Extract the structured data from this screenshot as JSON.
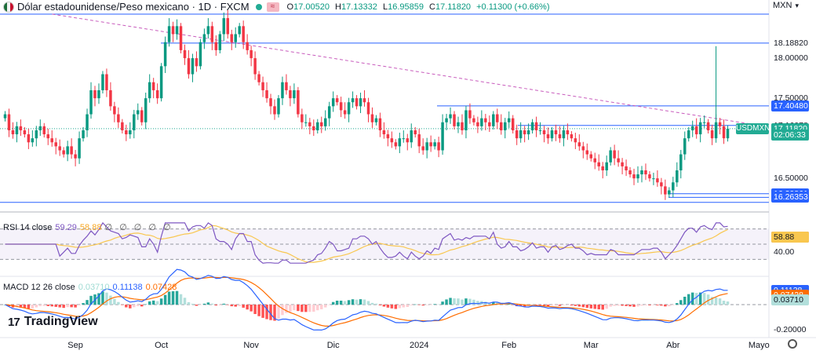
{
  "header": {
    "title": "Dólar estadounidense/Peso mexicano · 1D · FXCM",
    "badge": "≈",
    "ohlc": {
      "o_key": "O",
      "o": "17.00520",
      "h_key": "H",
      "h": "17.13332",
      "l_key": "L",
      "l": "16.95859",
      "c_key": "C",
      "c": "17.11820",
      "change": "+0.11300 (+0.66%)"
    },
    "currency": "MXN"
  },
  "logo_text": "TradingView",
  "price_axis": {
    "labels": [
      {
        "text": "18.18820",
        "y": 18.1882,
        "style": "plain"
      },
      {
        "text": "18.00000",
        "y": 18.0,
        "style": "plain"
      },
      {
        "text": "17.50000",
        "y": 17.5,
        "style": "plain"
      },
      {
        "text": "17.40480",
        "y": 17.4048,
        "style": "blue"
      },
      {
        "text": "17.16078",
        "y": 17.16078,
        "style": "plain"
      },
      {
        "text": "17.11820",
        "y": 17.1182,
        "style": "green"
      },
      {
        "text": "02:06:33",
        "y": 17.04,
        "style": "green"
      },
      {
        "text": "16.50000",
        "y": 16.5,
        "style": "plain"
      },
      {
        "text": "16.30861",
        "y": 16.30861,
        "style": "blue"
      },
      {
        "text": "16.26353",
        "y": 16.26353,
        "style": "blue"
      }
    ],
    "symbol_tag": "USDMXN"
  },
  "rsi": {
    "label": "RSI 14 close",
    "value": "59.29",
    "ma_value": "58.88",
    "icons": "∅ ∅ ∅ ∅ ∅",
    "axis_labels": [
      {
        "text": "59.29",
        "y": 59.29,
        "style": "purple"
      },
      {
        "text": "58.88",
        "y": 58.88,
        "style": "yellow"
      },
      {
        "text": "40.00",
        "y": 40,
        "style": "plain"
      }
    ]
  },
  "macd": {
    "label": "MACD 12 26 close",
    "hist_value": "0.03710",
    "macd_value": "0.11138",
    "signal_value": "0.07428",
    "axis_labels": [
      {
        "text": "0.11138",
        "y": 0.11138,
        "style": "blue"
      },
      {
        "text": "0.07428",
        "y": 0.07428,
        "style": "orange"
      },
      {
        "text": "0.03710",
        "y": 0.0371,
        "style": "teal"
      },
      {
        "text": "-0.20000",
        "y": -0.2,
        "style": "plain"
      }
    ]
  },
  "time_axis": [
    {
      "label": "Sep",
      "index": 18
    },
    {
      "label": "Oct",
      "index": 40
    },
    {
      "label": "Nov",
      "index": 63
    },
    {
      "label": "Dic",
      "index": 84
    },
    {
      "label": "2024",
      "index": 106
    },
    {
      "label": "Feb",
      "index": 129
    },
    {
      "label": "Mar",
      "index": 150
    },
    {
      "label": "Abr",
      "index": 171
    },
    {
      "label": "Mayo",
      "index": 193
    }
  ],
  "chart_data": {
    "type": "candlestick",
    "symbol": "USDMXN",
    "price_range": [
      16.1,
      18.55
    ],
    "horizontal_levels": [
      18.55,
      18.1882,
      17.4048,
      17.16078,
      16.30861,
      16.26353,
      16.2
    ],
    "trendline": {
      "from_index": 0,
      "from_price": 18.55,
      "to_index": 192,
      "to_price": 17.17
    },
    "closes": [
      17.3,
      17.1,
      17.05,
      17.15,
      17.1,
      17.05,
      16.95,
      17.0,
      17.1,
      17.15,
      17.05,
      17.0,
      16.95,
      16.9,
      16.85,
      16.8,
      16.9,
      16.8,
      16.75,
      17.0,
      17.1,
      17.3,
      17.6,
      17.5,
      17.6,
      17.8,
      17.6,
      17.4,
      17.3,
      17.2,
      17.1,
      17.05,
      17.1,
      17.3,
      17.35,
      17.2,
      17.5,
      17.7,
      17.6,
      17.5,
      17.9,
      18.2,
      18.4,
      18.3,
      18.4,
      18.1,
      18.0,
      17.8,
      18.0,
      17.9,
      18.2,
      18.3,
      18.4,
      18.2,
      18.1,
      18.3,
      18.5,
      18.3,
      18.2,
      18.3,
      18.4,
      18.2,
      18.1,
      18.0,
      17.8,
      17.7,
      17.6,
      17.5,
      17.4,
      17.3,
      17.5,
      17.7,
      17.6,
      17.5,
      17.6,
      17.3,
      17.2,
      17.2,
      17.15,
      17.1,
      17.2,
      17.15,
      17.25,
      17.4,
      17.5,
      17.45,
      17.35,
      17.3,
      17.45,
      17.5,
      17.4,
      17.5,
      17.45,
      17.3,
      17.2,
      17.25,
      17.1,
      17.05,
      17.0,
      16.95,
      16.9,
      17.0,
      17.0,
      16.95,
      17.1,
      17.05,
      16.9,
      16.85,
      16.95,
      16.9,
      16.95,
      16.85,
      17.2,
      17.25,
      17.3,
      17.15,
      17.2,
      17.1,
      17.35,
      17.25,
      17.2,
      17.15,
      17.25,
      17.2,
      17.15,
      17.3,
      17.2,
      17.1,
      17.2,
      17.25,
      17.1,
      17.0,
      17.1,
      17.05,
      17.1,
      17.2,
      17.1,
      17.1,
      17.05,
      17.0,
      17.1,
      17.05,
      17.0,
      17.1,
      17.05,
      17.0,
      16.95,
      16.9,
      16.85,
      16.8,
      16.75,
      16.7,
      16.65,
      16.6,
      16.7,
      16.85,
      16.75,
      16.7,
      16.65,
      16.6,
      16.55,
      16.5,
      16.55,
      16.6,
      16.55,
      16.5,
      16.5,
      16.45,
      16.4,
      16.3,
      16.35,
      16.45,
      16.6,
      16.8,
      17.0,
      17.1,
      17.15,
      17.05,
      17.2,
      17.2,
      17.1,
      17.0,
      17.2,
      17.15,
      17.0,
      17.12
    ]
  }
}
